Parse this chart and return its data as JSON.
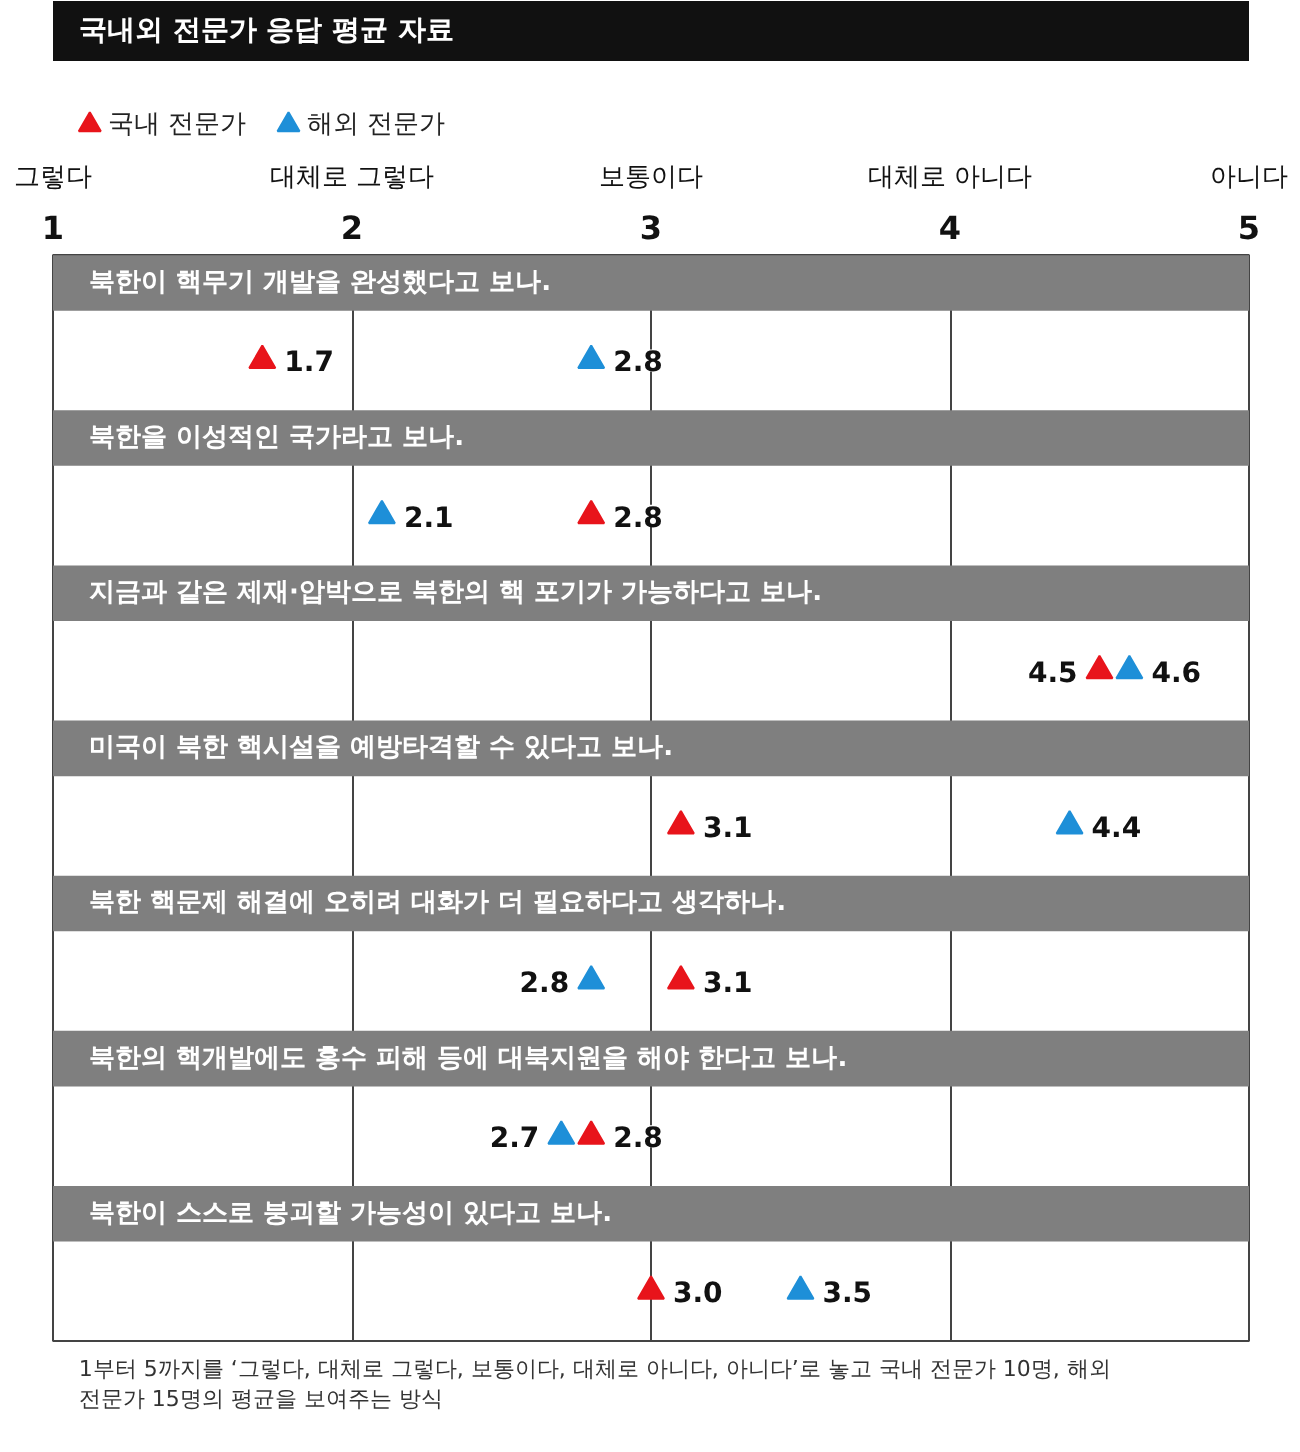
{
  "chart_data": {
    "type": "scatter",
    "orientation": "horizontal",
    "title": "국내외 전문가 응답 평균 자료",
    "categories": [
      "북한이 핵무기 개발을 완성했다고 보나.",
      "북한을 이성적인 국가라고 보나.",
      "지금과 같은 제재·압박으로 북한의 핵 포기가 가능하다고 보나.",
      "미국이 북한 핵시설을 예방타격할 수 있다고 보나.",
      "북한 핵문제 해결에 오히려 대화가 더 필요하다고 생각하나.",
      "북한의 핵개발에도 홍수 피해 등에 대북지원을 해야 한다고 보나.",
      "북한이 스스로 붕괴할 가능성이 있다고 보나."
    ],
    "series": [
      {
        "name": "국내 전문가",
        "color": "#e8141b",
        "values": [
          1.7,
          2.8,
          4.5,
          3.1,
          3.1,
          2.8,
          3.0
        ],
        "value_labels": [
          "1.7",
          "2.8",
          "4.5",
          "3.1",
          "3.1",
          "2.8",
          "3.0"
        ]
      },
      {
        "name": "해외 전문가",
        "color": "#1e8fd8",
        "values": [
          2.8,
          2.1,
          4.6,
          4.4,
          2.8,
          2.7,
          3.5
        ],
        "value_labels": [
          "2.8",
          "2.1",
          "4.6",
          "4.4",
          "2.8",
          "2.7",
          "3.5"
        ]
      }
    ],
    "xlim": [
      1,
      5
    ],
    "xticks": [
      1,
      2,
      3,
      4,
      5
    ],
    "marker": "triangle",
    "grid": "x",
    "legend": "top left",
    "annotations": [
      "그렇다",
      "대체로 그렇다",
      "보통이다",
      "대체로 아니다",
      "아니다",
      "1부터 5까지를 ‘그렇다, 대체로 그렇다, 보통이다, 대체로 아니다, 아니다’로 놓고 국내 전문가 10명, 해외 전문가 15명의 평균을 보여주는 방식"
    ]
  }
}
